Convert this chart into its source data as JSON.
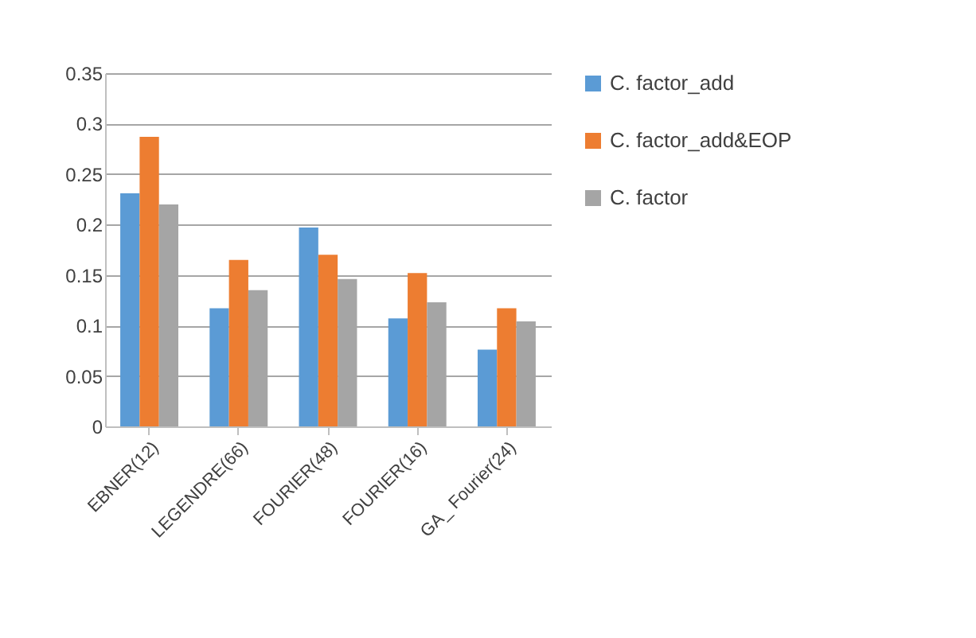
{
  "chart_data": {
    "type": "bar",
    "categories": [
      "EBNER(12)",
      "LEGENDRE(66)",
      "FOURIER(48)",
      "FOURIER(16)",
      "GA_ Fourier(24)"
    ],
    "series": [
      {
        "name": "C. factor_add",
        "color": "#5b9bd5",
        "values": [
          0.231,
          0.117,
          0.197,
          0.107,
          0.076
        ]
      },
      {
        "name": "C. factor_add&EOP",
        "color": "#ed7d31",
        "values": [
          0.287,
          0.165,
          0.17,
          0.152,
          0.117
        ]
      },
      {
        "name": "C. factor",
        "color": "#a5a5a5",
        "values": [
          0.22,
          0.135,
          0.146,
          0.123,
          0.104
        ]
      }
    ],
    "ylim": [
      0,
      0.35
    ],
    "yticks": [
      0,
      0.05,
      0.1,
      0.15,
      0.2,
      0.25,
      0.3,
      0.35
    ],
    "grid": "y",
    "legend": "right"
  }
}
